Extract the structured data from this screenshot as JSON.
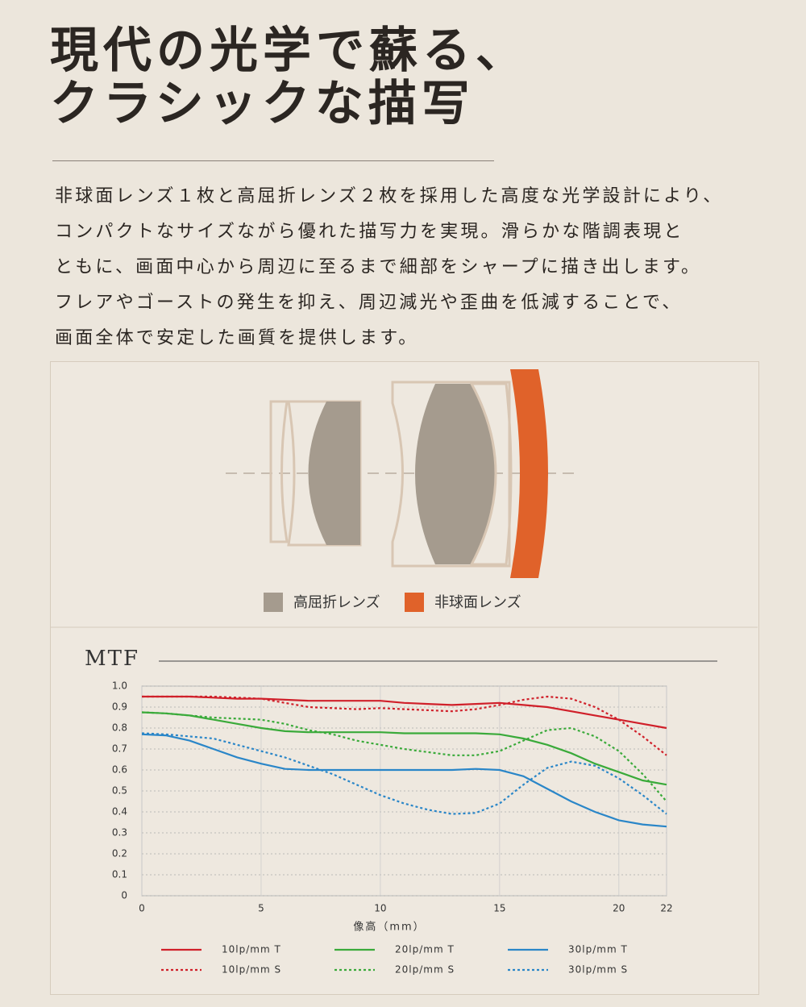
{
  "header": {
    "title_lines": [
      "現代の光学で蘇る、",
      "クラシックな描写"
    ]
  },
  "body": {
    "lines": [
      "非球面レンズ１枚と高屈折レンズ２枚を採用した高度な光学設計により、",
      "コンパクトなサイズながら優れた描写力を実現。滑らかな階調表現と",
      "ともに、画面中心から周辺に至るまで細部をシャープに描き出します。",
      "フレアやゴーストの発生を抑え、周辺減光や歪曲を低減することで、",
      "画面全体で安定した画質を提供します。"
    ]
  },
  "lens_diagram": {
    "legend": [
      {
        "label": "高屈折レンズ",
        "color": "#a59b8e"
      },
      {
        "label": "非球面レンズ",
        "color": "#e0622a"
      }
    ]
  },
  "chart_data": {
    "type": "line",
    "title": "MTF",
    "x_label": "像高（mm）",
    "x": [
      0,
      1,
      2,
      3,
      4,
      5,
      6,
      7,
      8,
      9,
      10,
      11,
      12,
      13,
      14,
      15,
      16,
      17,
      18,
      19,
      20,
      21,
      22
    ],
    "xlim": [
      0,
      22
    ],
    "xticks": [
      0,
      5,
      10,
      15,
      20,
      22
    ],
    "ylim": [
      0,
      1
    ],
    "yticks": [
      0,
      0.1,
      0.2,
      0.3,
      0.4,
      0.5,
      0.6,
      0.7,
      0.8,
      0.9,
      {
        "value": 1,
        "label": "1.0"
      }
    ],
    "grid": true,
    "series": [
      {
        "name": "10lp/mm T",
        "color": "#d0202a",
        "dashed": false,
        "values": [
          0.95,
          0.95,
          0.95,
          0.945,
          0.94,
          0.94,
          0.935,
          0.93,
          0.93,
          0.93,
          0.93,
          0.92,
          0.915,
          0.91,
          0.915,
          0.92,
          0.91,
          0.9,
          0.88,
          0.86,
          0.84,
          0.82,
          0.8
        ]
      },
      {
        "name": "20lp/mm T",
        "color": "#3aaa3a",
        "dashed": false,
        "values": [
          0.875,
          0.87,
          0.86,
          0.84,
          0.82,
          0.8,
          0.785,
          0.78,
          0.78,
          0.78,
          0.78,
          0.775,
          0.775,
          0.775,
          0.775,
          0.77,
          0.75,
          0.72,
          0.68,
          0.63,
          0.59,
          0.55,
          0.53
        ]
      },
      {
        "name": "30lp/mm T",
        "color": "#2a86c8",
        "dashed": false,
        "values": [
          0.77,
          0.765,
          0.74,
          0.7,
          0.66,
          0.63,
          0.605,
          0.6,
          0.6,
          0.6,
          0.6,
          0.6,
          0.6,
          0.6,
          0.605,
          0.6,
          0.57,
          0.51,
          0.45,
          0.4,
          0.36,
          0.34,
          0.33
        ]
      },
      {
        "name": "10lp/mm S",
        "color": "#d0202a",
        "dashed": true,
        "values": [
          0.95,
          0.95,
          0.95,
          0.95,
          0.945,
          0.94,
          0.92,
          0.9,
          0.895,
          0.89,
          0.895,
          0.89,
          0.885,
          0.88,
          0.89,
          0.91,
          0.935,
          0.95,
          0.94,
          0.9,
          0.84,
          0.76,
          0.67
        ]
      },
      {
        "name": "20lp/mm S",
        "color": "#3aaa3a",
        "dashed": true,
        "values": [
          0.875,
          0.87,
          0.86,
          0.85,
          0.845,
          0.84,
          0.82,
          0.79,
          0.77,
          0.74,
          0.72,
          0.7,
          0.685,
          0.67,
          0.67,
          0.69,
          0.74,
          0.79,
          0.8,
          0.76,
          0.69,
          0.58,
          0.45
        ]
      },
      {
        "name": "30lp/mm S",
        "color": "#2a86c8",
        "dashed": true,
        "values": [
          0.775,
          0.77,
          0.76,
          0.75,
          0.72,
          0.69,
          0.66,
          0.62,
          0.58,
          0.53,
          0.48,
          0.44,
          0.41,
          0.39,
          0.395,
          0.44,
          0.53,
          0.61,
          0.64,
          0.62,
          0.56,
          0.48,
          0.39
        ]
      }
    ]
  }
}
